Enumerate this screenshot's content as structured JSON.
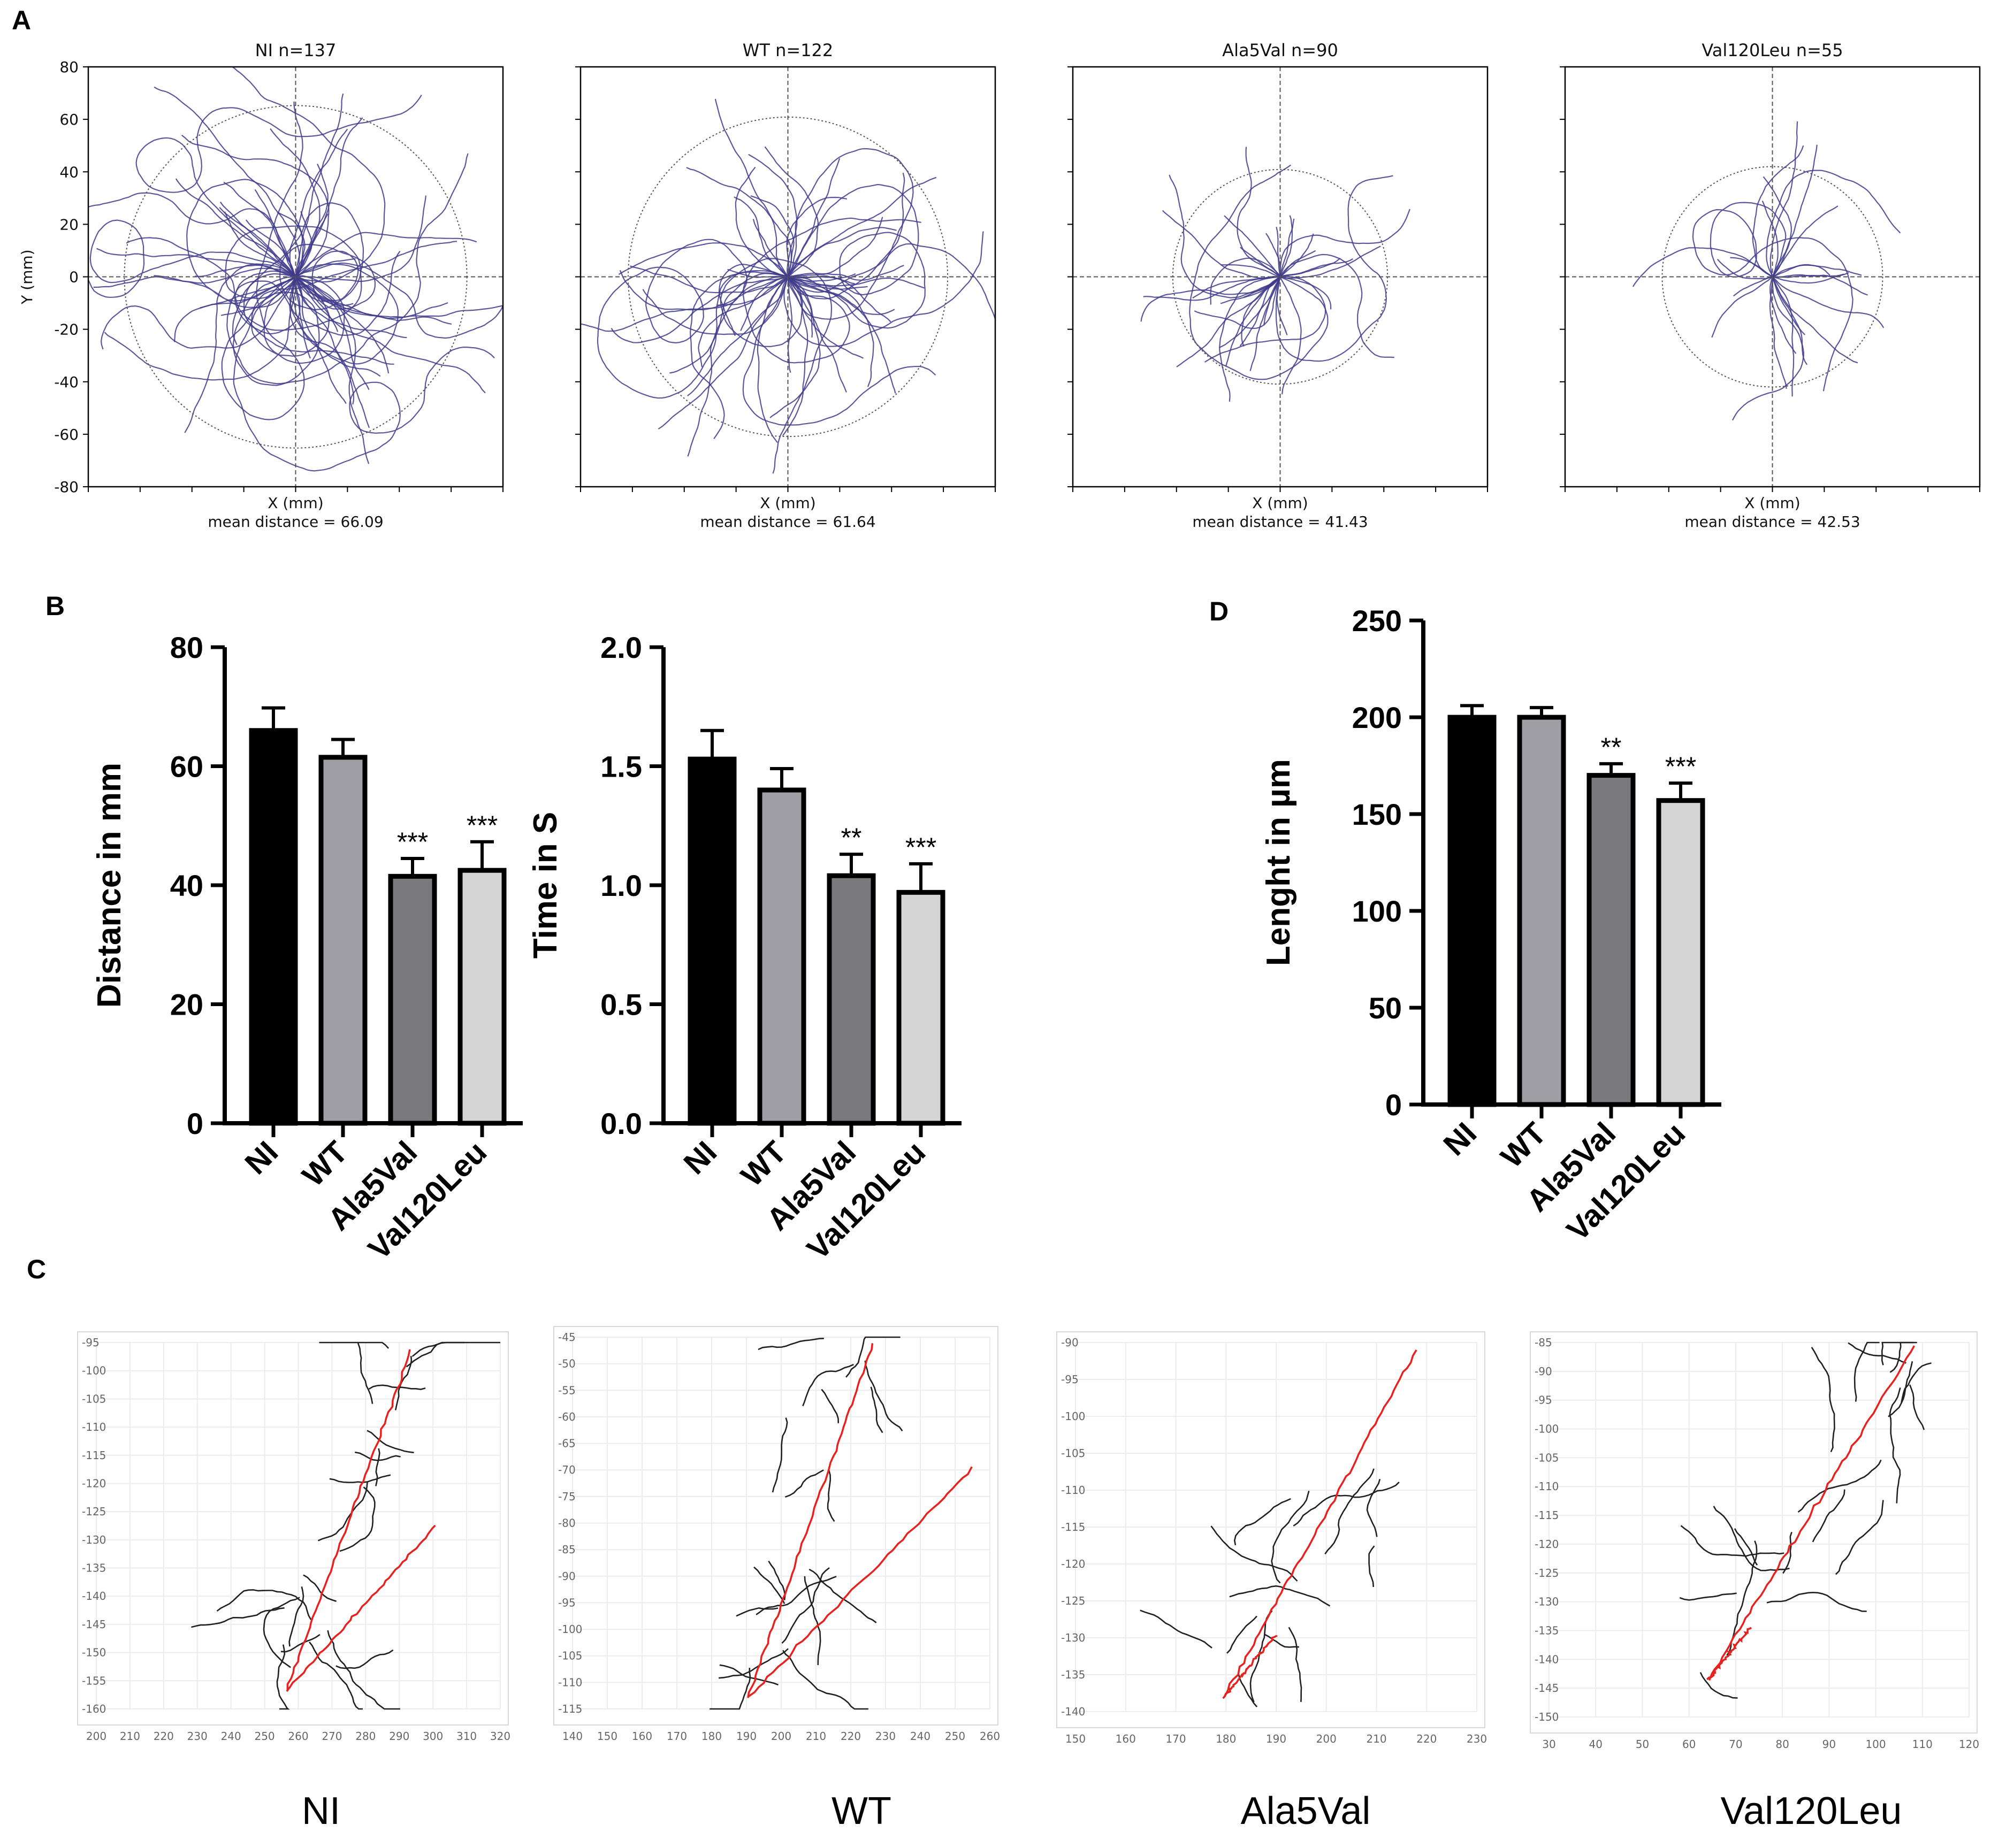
{
  "figure": {
    "panel_letters": [
      "A",
      "B",
      "C",
      "D"
    ]
  },
  "colors": {
    "track": "#3f3a8c",
    "red_trace": "#e8201e",
    "black_trace": "#202020",
    "bar_NI": "#000000",
    "bar_WT": "#9e9ea4",
    "bar_Ala5Val": "#7a7a7c",
    "bar_Val120Leu": "#d4d4d4"
  },
  "chart_data": [
    {
      "id": "A1",
      "type": "scatter",
      "title": "NI n=137",
      "n": 137,
      "xlabel": "X (mm)",
      "ylabel": "Y (mm)",
      "mean_distance": 66.09,
      "mean_distance_text": "mean distance = 66.09",
      "xlim": [
        -80,
        80
      ],
      "ylim": [
        -80,
        80
      ],
      "yticks": [
        80,
        60,
        40,
        20,
        0,
        -20,
        -40,
        -60,
        -80
      ],
      "circle_radius": 66.09
    },
    {
      "id": "A2",
      "type": "scatter",
      "title": "WT n=122",
      "n": 122,
      "xlabel": "X (mm)",
      "mean_distance": 61.64,
      "mean_distance_text": "mean distance = 61.64",
      "xlim": [
        -80,
        80
      ],
      "ylim": [
        -80,
        80
      ],
      "circle_radius": 61.64
    },
    {
      "id": "A3",
      "type": "scatter",
      "title": "Ala5Val n=90",
      "n": 90,
      "xlabel": "X (mm)",
      "mean_distance": 41.43,
      "mean_distance_text": "mean distance = 41.43",
      "xlim": [
        -80,
        80
      ],
      "ylim": [
        -80,
        80
      ],
      "circle_radius": 41.43
    },
    {
      "id": "A4",
      "type": "scatter",
      "title": "Val120Leu n=55",
      "n": 55,
      "xlabel": "X (mm)",
      "mean_distance": 42.53,
      "mean_distance_text": "mean distance = 42.53",
      "xlim": [
        -80,
        80
      ],
      "ylim": [
        -80,
        80
      ],
      "circle_radius": 42.53
    },
    {
      "id": "B1",
      "type": "bar",
      "ylabel": "Distance in mm",
      "categories": [
        "NI",
        "WT",
        "Ala5Val",
        "Val120Leu"
      ],
      "values": [
        66,
        61.5,
        41.5,
        42.5
      ],
      "errors": [
        3.8,
        3.0,
        3.0,
        4.8
      ],
      "significance": [
        "",
        "",
        "***",
        "***"
      ],
      "ylim": [
        0,
        80
      ],
      "yticks": [
        "0",
        "20",
        "40",
        "60",
        "80"
      ]
    },
    {
      "id": "B2",
      "type": "bar",
      "ylabel": "Time in S",
      "categories": [
        "NI",
        "WT",
        "Ala5Val",
        "Val120Leu"
      ],
      "values": [
        1.53,
        1.4,
        1.04,
        0.97
      ],
      "errors": [
        0.12,
        0.09,
        0.09,
        0.12
      ],
      "significance": [
        "",
        "",
        "**",
        "***"
      ],
      "ylim": [
        0,
        2.0
      ],
      "yticks": [
        "0.0",
        "0.5",
        "1.0",
        "1.5",
        "2.0"
      ]
    },
    {
      "id": "D",
      "type": "bar",
      "ylabel": "Lenght in µm",
      "categories": [
        "NI",
        "WT",
        "Ala5Val",
        "Val120Leu"
      ],
      "values": [
        200,
        200,
        170,
        157
      ],
      "errors": [
        6,
        5,
        6,
        9
      ],
      "significance": [
        "",
        "",
        "**",
        "***"
      ],
      "ylim": [
        0,
        250
      ],
      "yticks": [
        "0",
        "50",
        "100",
        "150",
        "200",
        "250"
      ]
    },
    {
      "id": "C1",
      "type": "line",
      "caption": "NI",
      "xticks": [
        "200",
        "210",
        "220",
        "230",
        "240",
        "250",
        "260",
        "270",
        "280",
        "290",
        "300",
        "310",
        "320"
      ],
      "yticks": [
        "-95",
        "-100",
        "-105",
        "-110",
        "-115",
        "-120",
        "-125",
        "-130",
        "-135",
        "-140",
        "-145",
        "-150",
        "-155",
        "-160"
      ]
    },
    {
      "id": "C2",
      "type": "line",
      "caption": "WT",
      "xticks": [
        "140",
        "150",
        "160",
        "170",
        "180",
        "190",
        "200",
        "210",
        "220",
        "230",
        "240",
        "250",
        "260"
      ],
      "yticks": [
        "-45",
        "-50",
        "-55",
        "-60",
        "-65",
        "-70",
        "-75",
        "-80",
        "-85",
        "-90",
        "-95",
        "-100",
        "-105",
        "-110",
        "-115"
      ]
    },
    {
      "id": "C3",
      "type": "line",
      "caption": "Ala5Val",
      "xticks": [
        "150",
        "160",
        "170",
        "180",
        "190",
        "200",
        "210",
        "220",
        "230"
      ],
      "yticks": [
        "-90",
        "-95",
        "-100",
        "-105",
        "-110",
        "-115",
        "-120",
        "-125",
        "-130",
        "-135",
        "-140"
      ]
    },
    {
      "id": "C4",
      "type": "line",
      "caption": "Val120Leu",
      "xticks": [
        "30",
        "40",
        "50",
        "60",
        "70",
        "80",
        "90",
        "100",
        "110",
        "120"
      ],
      "yticks": [
        "-85",
        "-90",
        "-95",
        "-100",
        "-105",
        "-110",
        "-115",
        "-120",
        "-125",
        "-130",
        "-135",
        "-140",
        "-145",
        "-150"
      ]
    }
  ]
}
